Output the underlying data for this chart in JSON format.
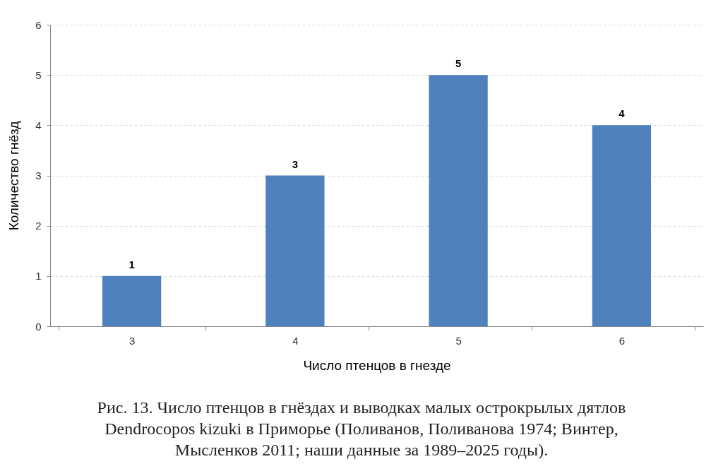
{
  "chart_data": {
    "type": "bar",
    "xlabel": "Число птенцов в гнезде",
    "ylabel": "Количество гнёзд",
    "categories": [
      "3",
      "4",
      "5",
      "6"
    ],
    "values": [
      1,
      3,
      5,
      4
    ],
    "color": "#4f81bd",
    "ylim": [
      0,
      6
    ],
    "yticks": [
      0,
      1,
      2,
      3,
      4,
      5,
      6
    ],
    "grid": "y",
    "data_labels": true,
    "annotations": [
      "Рис. 13. Число птенцов в гнёздах и выводках малых острокрылых дятлов Dendrocopos kizuki в Приморье (Поливанов, Поливанова 1974; Винтер, Мысленков 2011; наши данные за 1989–2025 годы)."
    ]
  }
}
